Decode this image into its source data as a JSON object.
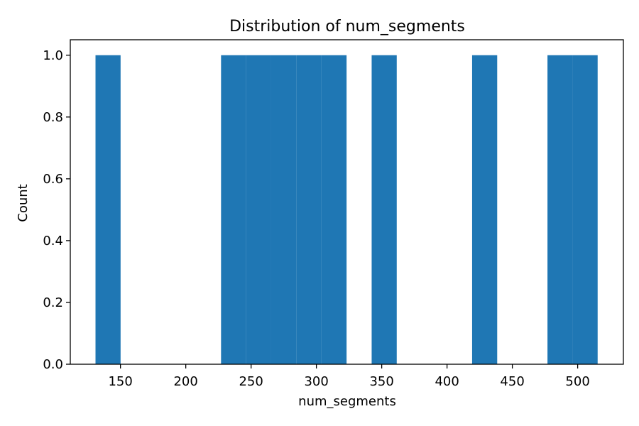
{
  "chart_data": {
    "type": "bar",
    "title": "Distribution of num_segments",
    "xlabel": "num_segments",
    "ylabel": "Count",
    "xlim": [
      111.6,
      535.0
    ],
    "ylim": [
      0.0,
      1.05
    ],
    "xticks": [
      150,
      200,
      250,
      300,
      350,
      400,
      450,
      500
    ],
    "yticks": [
      "0.0",
      "0.2",
      "0.4",
      "0.6",
      "0.8",
      "1.0"
    ],
    "bins": [
      {
        "start": 130.9,
        "end": 150.1,
        "count": 1
      },
      {
        "start": 227.0,
        "end": 246.2,
        "count": 1
      },
      {
        "start": 246.2,
        "end": 265.4,
        "count": 1
      },
      {
        "start": 265.4,
        "end": 284.6,
        "count": 1
      },
      {
        "start": 284.6,
        "end": 303.8,
        "count": 1
      },
      {
        "start": 303.8,
        "end": 323.1,
        "count": 1
      },
      {
        "start": 342.3,
        "end": 361.5,
        "count": 1
      },
      {
        "start": 419.2,
        "end": 438.4,
        "count": 1
      },
      {
        "start": 476.9,
        "end": 496.1,
        "count": 1
      },
      {
        "start": 496.1,
        "end": 515.3,
        "count": 1
      }
    ],
    "bar_color": "#1f77b4",
    "grid": false,
    "legend": "none"
  }
}
